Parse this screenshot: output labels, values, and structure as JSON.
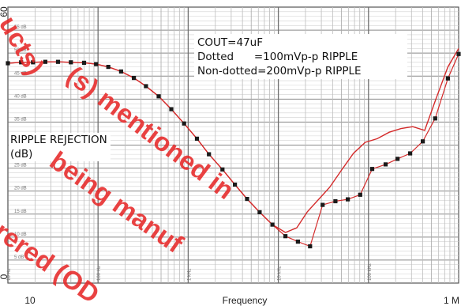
{
  "chart_data": {
    "type": "line",
    "xlabel": "Frequency",
    "ylabel": "RIPPLE REJECTION (dB)",
    "x_scale": "log",
    "xlim": [
      10,
      1000000
    ],
    "ylim": [
      0,
      60
    ],
    "grid": true,
    "x_tick_labels": [
      "10",
      "1 M"
    ],
    "y_tick_labels": [
      "0",
      "60"
    ],
    "inner_x_labels": [
      "10 Hz",
      "100 Hz",
      "1 kHz",
      "10 kHz",
      "100 kHz"
    ],
    "inner_y_labels": [
      "55 dB",
      "50 dB",
      "45 dB",
      "40 dB",
      "35 dB",
      "30 dB",
      "25 dB",
      "20 dB",
      "15 dB",
      "10 dB",
      "5 dB"
    ],
    "annotation": [
      "COUT=47uF",
      "Dotted      =100mVp-p RIPPLE",
      "Non-dotted=200mVp-p RIPPLE"
    ],
    "series": [
      {
        "style": "dotted",
        "color": "#1a1a1a",
        "x": [
          10,
          14,
          19,
          26,
          36,
          50,
          70,
          95,
          130,
          180,
          250,
          340,
          470,
          650,
          900,
          1250,
          1700,
          2400,
          3300,
          4500,
          6200,
          8600,
          12000,
          16500,
          22500,
          31000,
          43000,
          59000,
          81000,
          110000,
          155000,
          210000,
          290000,
          400000,
          550000,
          760000,
          1000000
        ],
        "y": [
          47.8,
          48.0,
          48.0,
          48.1,
          48.1,
          48.0,
          47.9,
          47.6,
          47.0,
          46.0,
          44.6,
          42.8,
          40.6,
          37.8,
          34.7,
          31.4,
          28.0,
          24.7,
          21.4,
          18.3,
          15.4,
          12.7,
          10.2,
          9.0,
          8.0,
          17.0,
          17.8,
          18.2,
          19.2,
          24.8,
          25.8,
          27.0,
          28.2,
          30.8,
          35.8,
          44.5,
          49.8
        ]
      },
      {
        "style": "solid",
        "color": "#d42a2a",
        "x": [
          10,
          14,
          19,
          26,
          36,
          50,
          70,
          95,
          130,
          180,
          250,
          340,
          470,
          650,
          900,
          1250,
          1700,
          2400,
          3300,
          4500,
          6200,
          8600,
          12000,
          16000,
          21000,
          28000,
          37000,
          50000,
          68000,
          92000,
          125000,
          170000,
          230000,
          310000,
          420000,
          560000,
          760000,
          1000000
        ],
        "y": [
          47.8,
          48.0,
          48.0,
          48.1,
          48.1,
          48.0,
          47.9,
          47.6,
          47.0,
          46.0,
          44.6,
          42.8,
          40.6,
          37.8,
          34.7,
          31.4,
          28.0,
          24.7,
          21.4,
          18.3,
          15.4,
          12.7,
          11.0,
          12.0,
          15.5,
          18.2,
          20.8,
          24.5,
          28.2,
          30.6,
          31.4,
          32.8,
          33.6,
          34.0,
          33.2,
          40.0,
          47.0,
          51.0
        ]
      }
    ]
  },
  "watermark": [
    "(s) mentioned in",
    "ucts)",
    "being manuf",
    "rered (OD"
  ],
  "colors": {
    "watermark": "#e62828",
    "accent": "#d42a2a",
    "plot_bg": "#ffffff"
  }
}
